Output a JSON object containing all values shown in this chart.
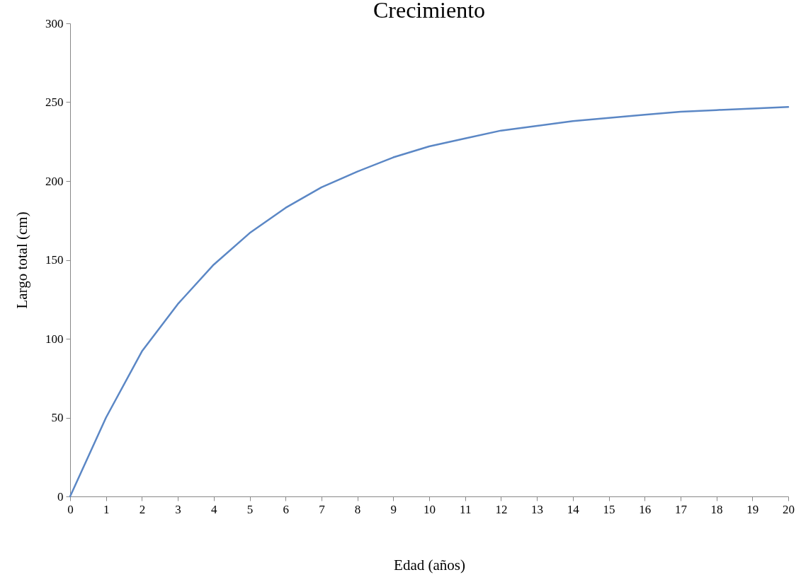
{
  "chart_data": {
    "type": "line",
    "title": "Crecimiento",
    "xlabel": "Edad (años)",
    "ylabel": "Largo total (cm)",
    "x": [
      0,
      1,
      2,
      3,
      4,
      5,
      6,
      7,
      8,
      9,
      10,
      11,
      12,
      13,
      14,
      15,
      16,
      17,
      18,
      19,
      20
    ],
    "series": [
      {
        "color": "#5b87c5",
        "values": [
          0,
          50,
          92,
          122,
          147,
          167,
          183,
          196,
          206,
          215,
          222,
          227,
          232,
          235,
          238,
          240,
          242,
          244,
          245,
          246,
          247
        ]
      }
    ],
    "xlim": [
      0,
      20
    ],
    "xticks": [
      0,
      1,
      2,
      3,
      4,
      5,
      6,
      7,
      8,
      9,
      10,
      11,
      12,
      13,
      14,
      15,
      16,
      17,
      18,
      19,
      20
    ],
    "ylim": [
      0,
      300
    ],
    "yticks": [
      0,
      50,
      100,
      150,
      200,
      250,
      300
    ]
  }
}
